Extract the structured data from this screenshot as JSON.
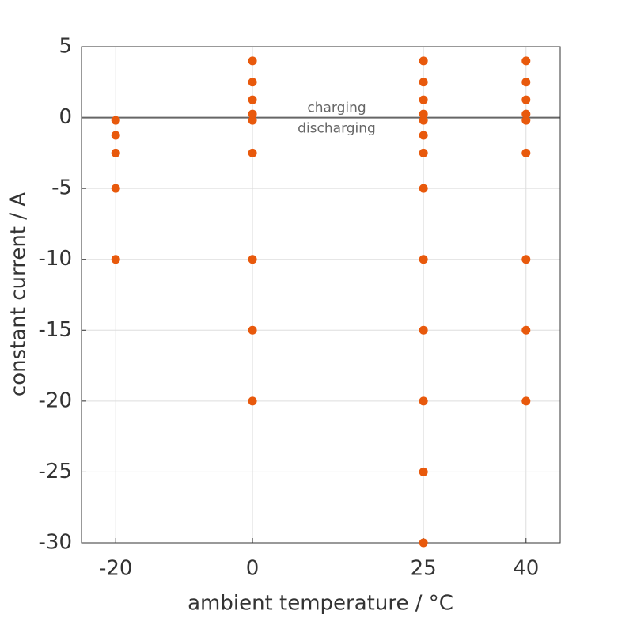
{
  "chart_data": {
    "type": "scatter",
    "xlabel": "ambient temperature / °C",
    "ylabel": "constant current / A",
    "xlim": [
      -25,
      45
    ],
    "xticks": [
      -20,
      0,
      25,
      40
    ],
    "ylim": [
      -30,
      5
    ],
    "yticks": [
      -30,
      -25,
      -20,
      -15,
      -10,
      -5,
      0,
      5
    ],
    "grid": true,
    "zero_line": true,
    "annotations": [
      "charging",
      "discharging"
    ],
    "series": [
      {
        "color": "#e8590c",
        "x": [
          -20,
          -20,
          -20,
          -20,
          -20,
          0,
          0,
          0,
          0,
          0,
          0,
          0,
          0,
          0,
          25,
          25,
          25,
          25,
          25,
          25,
          25,
          25,
          25,
          25,
          25,
          25,
          25,
          40,
          40,
          40,
          40,
          40,
          40,
          40,
          40,
          40
        ],
        "values": [
          -0.2,
          -1.25,
          -2.5,
          -5,
          -10,
          4,
          2.5,
          1.25,
          0.25,
          -0.2,
          -2.5,
          -10,
          -15,
          -20,
          4,
          2.5,
          1.25,
          0.25,
          -0.2,
          -1.25,
          -2.5,
          -5,
          -10,
          -15,
          -20,
          -25,
          -30,
          4,
          2.5,
          1.25,
          0.25,
          -0.2,
          -2.5,
          -10,
          -15,
          -20
        ]
      }
    ]
  }
}
